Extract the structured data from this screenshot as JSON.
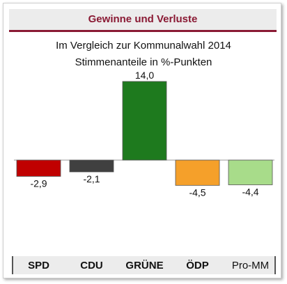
{
  "header": {
    "title": "Gewinne und Verluste"
  },
  "chart_data": {
    "type": "bar",
    "title": "Im Vergleich zur Kommunalwahl 2014",
    "subtitle": "Stimmenanteile in %-Punkten",
    "categories": [
      "SPD",
      "CDU",
      "GRÜNE",
      "ÖDP",
      "Pro-MM"
    ],
    "values": [
      -2.9,
      -2.1,
      14.0,
      -4.5,
      -4.4
    ],
    "value_labels": [
      "-2,9",
      "-2,1",
      "14,0",
      "-4,5",
      "-4,4"
    ],
    "colors": [
      "#c00000",
      "#404040",
      "#1e7a1e",
      "#f5a02a",
      "#a8dc8a"
    ],
    "xlabel": "",
    "ylabel": "",
    "ylim": [
      -5,
      14
    ],
    "grid": false,
    "legend": "none"
  }
}
